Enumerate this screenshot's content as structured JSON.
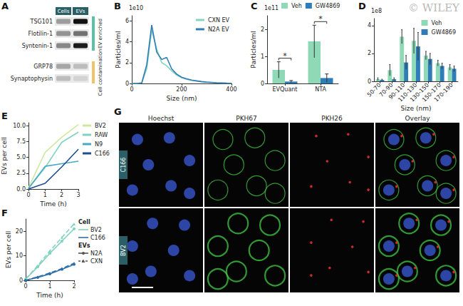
{
  "watermark": "© WILEY",
  "blot": {
    "panel": "A",
    "columns": [
      "Cells",
      "EVs"
    ],
    "rows": [
      {
        "label": "TSG101",
        "intensity": [
          0.35,
          1
        ]
      },
      {
        "label": "Flotilin-1",
        "intensity": [
          0.4,
          0.55
        ]
      },
      {
        "label": "Syntenin-1",
        "intensity": [
          0.45,
          0.95
        ]
      },
      {
        "label": "GRP78",
        "intensity": [
          0.3,
          0.2
        ]
      },
      {
        "label": "Synaptophysin",
        "intensity": [
          0.2,
          0.1
        ]
      }
    ],
    "groups": [
      {
        "label": "EV enriched",
        "rows": [
          0,
          1,
          2
        ],
        "color": "#5cc2a6"
      },
      {
        "label": "Cell contamination",
        "rows": [
          3,
          4
        ],
        "color": "#f0c36a"
      }
    ]
  },
  "chart_data": [
    {
      "panel": "B",
      "type": "line",
      "x": [
        0,
        20,
        40,
        60,
        80,
        100,
        120,
        140,
        160,
        180,
        200,
        220,
        240,
        260,
        280,
        300,
        320,
        340,
        360,
        380,
        400
      ],
      "series": [
        {
          "name": "CXN EV",
          "color": "#86d4bd",
          "values": [
            0,
            0,
            0.05,
            1.4,
            5.1,
            3.3,
            2.0,
            1.7,
            1.2,
            0.8,
            0.55,
            0.4,
            0.3,
            0.22,
            0.16,
            0.12,
            0.09,
            0.06,
            0.04,
            0.03,
            0.02
          ]
        },
        {
          "name": "N2A EV",
          "color": "#2f7db8",
          "values": [
            0,
            0,
            0.05,
            1.8,
            5.6,
            3.0,
            2.3,
            2.5,
            1.4,
            0.9,
            0.6,
            0.45,
            0.32,
            0.25,
            0.18,
            0.13,
            0.1,
            0.07,
            0.05,
            0.03,
            0.02
          ]
        }
      ],
      "xlabel": "Size (nm)",
      "ylabel": "Particles/ml",
      "y_multiplier": "1e10",
      "xlim": [
        0,
        400
      ],
      "xticks": [
        0,
        200,
        400
      ],
      "ylim": [
        0,
        6.5
      ],
      "yticks": [
        0,
        2,
        4,
        6
      ],
      "grid": false,
      "legend": "upper right"
    },
    {
      "panel": "C",
      "type": "bar",
      "categories": [
        "EVQuant",
        "NTA"
      ],
      "series": [
        {
          "name": "Veh",
          "color": "#8fd9b6",
          "values": [
            0.5,
            1.55
          ],
          "errors": [
            0.3,
            0.6
          ]
        },
        {
          "name": "GW4869",
          "color": "#2f7db8",
          "values": [
            0.07,
            0.2
          ],
          "errors": [
            0.04,
            0.15
          ]
        }
      ],
      "ylabel": "Particles/ml",
      "y_multiplier": "1e11",
      "ylim": [
        0,
        2.5
      ],
      "yticks": [
        0,
        1,
        2
      ],
      "annotations": [
        {
          "category": "EVQuant",
          "text": "*"
        },
        {
          "category": "NTA",
          "text": "*"
        }
      ],
      "grid": false,
      "legend": "top"
    },
    {
      "panel": "D",
      "type": "bar",
      "categories": [
        "50-70",
        "70-90",
        "90-110",
        "110-130",
        "130-150",
        "150-170",
        "170-190"
      ],
      "series": [
        {
          "name": "Veh",
          "color": "#8fd9b6",
          "values": [
            0.15,
            0.8,
            3.2,
            2.9,
            1.85,
            1.3,
            1.0
          ],
          "errors": [
            0.1,
            0.4,
            0.5,
            0.9,
            0.3,
            0.2,
            0.2
          ]
        },
        {
          "name": "GW4869",
          "color": "#2f7db8",
          "values": [
            0.1,
            0.15,
            1.35,
            2.5,
            1.6,
            1.1,
            0.9
          ],
          "errors": [
            0.05,
            0.1,
            0.5,
            1.0,
            0.4,
            0.2,
            0.2
          ]
        }
      ],
      "xlabel": "Size (nm)",
      "y_multiplier": "1e8",
      "ylim": [
        0,
        4.5
      ],
      "yticks": [
        0,
        2,
        4
      ],
      "grid": false,
      "legend": "upper right"
    },
    {
      "panel": "E",
      "type": "line",
      "x": [
        0,
        1,
        2,
        3
      ],
      "series": [
        {
          "name": "BV2",
          "color": "#cfe8a0",
          "values": [
            0.2,
            5.8,
            8.2,
            10.2
          ]
        },
        {
          "name": "RAW",
          "color": "#7fd3bf",
          "values": [
            0.1,
            3.4,
            7.4,
            9.0
          ]
        },
        {
          "name": "N9",
          "color": "#4aa8c4",
          "values": [
            0.1,
            3.6,
            4.0,
            4.4
          ]
        },
        {
          "name": "C166",
          "color": "#1f4e8c",
          "values": [
            0,
            0.9,
            3.5,
            6.3
          ]
        }
      ],
      "xlabel": "Time (h)",
      "ylabel": "EVs per cell",
      "xlim": [
        0,
        3
      ],
      "xticks": [
        0,
        1,
        2,
        3
      ],
      "ylim": [
        0,
        10.5
      ],
      "yticks": [
        {
          "value": 0,
          "label": "0.0"
        },
        2.5,
        {
          "value": 5,
          "label": "5.0"
        },
        7.5,
        {
          "value": 10,
          "label": "10.0"
        }
      ],
      "grid": false,
      "legend": "right"
    },
    {
      "panel": "F",
      "type": "line",
      "x": [
        0,
        0.5,
        1,
        1.5,
        2
      ],
      "legend_groups": [
        {
          "title": "Cell",
          "items": [
            {
              "name": "BV2",
              "color": "#7fd3bf"
            },
            {
              "name": "C166",
              "color": "#2f6fa8"
            }
          ]
        },
        {
          "title": "EVs",
          "items": [
            {
              "name": "N2A",
              "marker": "circle",
              "line_style": "solid"
            },
            {
              "name": "CXN",
              "marker": "triangle",
              "line_style": "dashed"
            }
          ]
        }
      ],
      "series": [
        {
          "cell": "BV2",
          "evs": "N2A",
          "values": [
            0.5,
            5.5,
            11,
            16,
            21
          ]
        },
        {
          "cell": "BV2",
          "evs": "CXN",
          "values": [
            0.5,
            6,
            12,
            17.5,
            23
          ]
        },
        {
          "cell": "C166",
          "evs": "N2A",
          "values": [
            0,
            1.2,
            2.6,
            4.5,
            6.5
          ]
        },
        {
          "cell": "C166",
          "evs": "CXN",
          "values": [
            0,
            1.4,
            3,
            4.8,
            7
          ]
        }
      ],
      "xlabel": "Time (h)",
      "ylabel": "EVs per cell",
      "xlim": [
        0,
        2
      ],
      "xticks": [
        0,
        1,
        2
      ],
      "ylim": [
        0,
        25
      ],
      "yticks": [
        0,
        10,
        20
      ],
      "grid": false,
      "legend": "right"
    }
  ],
  "images": {
    "panel": "G",
    "columns": [
      {
        "label": "Hoechst",
        "color": "#3b5bdb"
      },
      {
        "label": "PKH67",
        "color": "#3fbf3f"
      },
      {
        "label": "PKH26",
        "color": "#e03131"
      },
      {
        "label": "Overlay"
      }
    ],
    "rows": [
      "C166",
      "BV2"
    ]
  }
}
